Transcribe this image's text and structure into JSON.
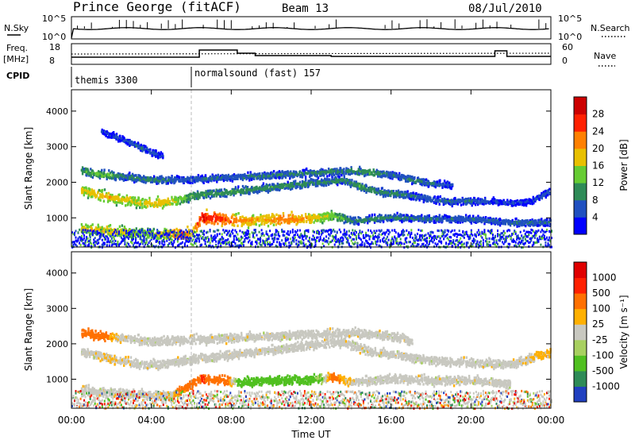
{
  "header": {
    "station": "Prince George (fitACF)",
    "beam": "Beam 13",
    "date": "08/Jul/2010"
  },
  "nsky_panel": {
    "left_label": "N.Sky",
    "left_ticks": [
      "10^5",
      "10^0"
    ],
    "right_ticks": [
      "10^5",
      "10^0"
    ],
    "right_label": "N.Search"
  },
  "freq_panel": {
    "left_label_line1": "Freq.",
    "left_label_line2": "[MHz]",
    "left_ticks": [
      "18",
      "8"
    ],
    "right_ticks": [
      "60",
      "0"
    ],
    "right_label": "Nave"
  },
  "cpid_panel": {
    "label": "CPID",
    "segments": [
      "themis 3300",
      "normalsound (fast) 157"
    ]
  },
  "axes": {
    "x_ticks": [
      "00:00",
      "04:00",
      "08:00",
      "12:00",
      "16:00",
      "20:00",
      "00:00"
    ],
    "x_label": "Time UT",
    "y_ticks": [
      "1000",
      "2000",
      "3000",
      "4000"
    ],
    "y_label": "Slant Range [km]"
  },
  "power_colorbar": {
    "label": "Power [dB]",
    "ticks": [
      "4",
      "8",
      "12",
      "16",
      "20",
      "24",
      "28"
    ],
    "colors": [
      "#0000ff",
      "#2050c0",
      "#2e8b57",
      "#66cc33",
      "#e8c000",
      "#ff8000",
      "#ff2000",
      "#cc0000"
    ]
  },
  "velocity_colorbar": {
    "label": "Velocity [m s⁻¹]",
    "ticks": [
      "1000",
      "500",
      "100",
      "25",
      "-25",
      "-100",
      "-500",
      "-1000"
    ],
    "colors": [
      "#2040c0",
      "#2e8b57",
      "#50c020",
      "#a8d060",
      "#c8c8c0",
      "#ffb000",
      "#ff7000",
      "#ff2000",
      "#e00000"
    ]
  },
  "chart_data": [
    {
      "type": "heatmap",
      "title": "Power",
      "xlabel": "Time UT",
      "ylabel": "Slant Range [km]",
      "xlim": [
        0,
        24
      ],
      "ylim": [
        180,
        4600
      ],
      "colorbar_range": [
        0,
        30
      ],
      "series": [
        {
          "name": "band_lower",
          "x": [
            0.5,
            2,
            3.5,
            4.5,
            5.5,
            6,
            6.5,
            7.5,
            8.5,
            9.5,
            10.5,
            11.5,
            12.5,
            13,
            14,
            16,
            18,
            20,
            22,
            24
          ],
          "y": [
            720,
            650,
            600,
            580,
            570,
            600,
            1050,
            1000,
            950,
            980,
            1000,
            1000,
            1050,
            1100,
            950,
            1050,
            1000,
            1000,
            900,
            900
          ],
          "power": [
            18,
            20,
            16,
            18,
            26,
            20,
            28,
            26,
            22,
            20,
            24,
            22,
            18,
            16,
            10,
            10,
            8,
            8,
            8,
            8
          ]
        },
        {
          "name": "band_middle",
          "x": [
            0.5,
            1.5,
            2.5,
            3.5,
            4.5,
            5.5,
            6,
            13.5,
            14.5,
            15.5,
            16.5,
            17.5,
            18.5,
            20,
            21,
            22,
            23,
            24
          ],
          "y": [
            1800,
            1650,
            1550,
            1450,
            1450,
            1550,
            1650,
            2100,
            1900,
            1750,
            1700,
            1600,
            1500,
            1500,
            1500,
            1450,
            1500,
            1800
          ],
          "power": [
            18,
            20,
            18,
            18,
            20,
            16,
            12,
            10,
            12,
            10,
            10,
            8,
            8,
            8,
            6,
            6,
            6,
            8
          ]
        },
        {
          "name": "band_upper",
          "x": [
            0.5,
            1.5,
            2.5,
            4,
            5.5,
            14,
            15,
            16,
            17,
            18,
            19
          ],
          "y": [
            2350,
            2250,
            2200,
            2100,
            2100,
            2350,
            2300,
            2250,
            2100,
            2000,
            1950
          ],
          "power": [
            12,
            14,
            10,
            10,
            8,
            10,
            12,
            8,
            10,
            8,
            6
          ]
        },
        {
          "name": "band_high",
          "x": [
            1.5,
            2.5,
            3.5,
            4.5
          ],
          "y": [
            3450,
            3250,
            3000,
            2750
          ],
          "power": [
            6,
            6,
            8,
            6
          ]
        }
      ]
    },
    {
      "type": "heatmap",
      "title": "Velocity",
      "xlabel": "Time UT",
      "ylabel": "Slant Range [km]",
      "xlim": [
        0,
        24
      ],
      "ylim": [
        180,
        4600
      ],
      "series": [
        {
          "name": "band_lower",
          "x": [
            0.5,
            2,
            3.5,
            5,
            6.5,
            7.5,
            8.5,
            9.5,
            10.5,
            11.5,
            12.5,
            13,
            14,
            16,
            18,
            20,
            22
          ],
          "y": [
            720,
            650,
            600,
            570,
            1050,
            1000,
            950,
            980,
            1000,
            1000,
            1050,
            1100,
            950,
            1050,
            1000,
            1000,
            900
          ],
          "velocity": [
            0,
            0,
            0,
            -20,
            -300,
            -200,
            150,
            200,
            120,
            100,
            60,
            -100,
            0,
            0,
            0,
            0,
            0
          ]
        },
        {
          "name": "band_middle",
          "x": [
            0.5,
            2,
            3.5,
            4.5,
            5.5,
            13.5,
            15,
            16.5,
            18,
            20,
            22,
            24
          ],
          "y": [
            1800,
            1600,
            1450,
            1450,
            1550,
            2100,
            1800,
            1700,
            1550,
            1500,
            1450,
            1800
          ],
          "velocity": [
            0,
            -20,
            0,
            0,
            0,
            0,
            0,
            0,
            0,
            0,
            0,
            -50
          ]
        },
        {
          "name": "band_upper",
          "x": [
            0.5,
            1.5,
            2.5,
            4,
            14,
            15,
            16,
            17
          ],
          "y": [
            2350,
            2250,
            2200,
            2100,
            2350,
            2300,
            2250,
            2100
          ],
          "velocity": [
            -150,
            -100,
            0,
            0,
            0,
            0,
            0,
            0
          ]
        }
      ]
    }
  ]
}
